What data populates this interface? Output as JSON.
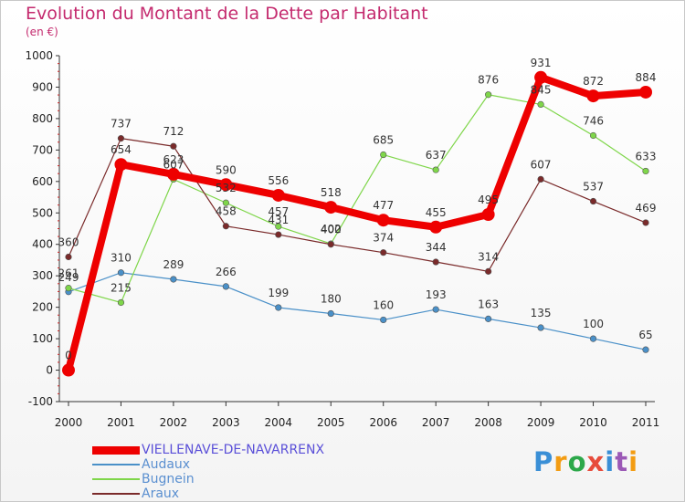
{
  "header": {
    "title": "Evolution du Montant de la Dette par Habitant",
    "subtitle": "(en €)"
  },
  "logo": {
    "text": "Proxiti",
    "colors": [
      "#3a8fd6",
      "#f39c12",
      "#2ca84a",
      "#e74c3c",
      "#3a8fd6",
      "#9b59b6",
      "#f39c12"
    ]
  },
  "chart_data": {
    "type": "line",
    "title": "Evolution du Montant de la Dette par Habitant",
    "subtitle": "(en €)",
    "xlabel": "",
    "ylabel": "",
    "x": [
      "2000",
      "2001",
      "2002",
      "2003",
      "2004",
      "2005",
      "2006",
      "2007",
      "2008",
      "2009",
      "2010",
      "2011"
    ],
    "ylim": [
      -100,
      1000
    ],
    "yticks": [
      -100,
      0,
      100,
      200,
      300,
      400,
      500,
      600,
      700,
      800,
      900,
      1000
    ],
    "grid": false,
    "legend_position": "bottom-left",
    "series": [
      {
        "name": "VIELLENAVE-DE-NAVARRENX",
        "color": "#ee0000",
        "values": [
          0,
          654,
          623,
          590,
          556,
          518,
          477,
          455,
          495,
          931,
          872,
          884
        ]
      },
      {
        "name": "Audaux",
        "color": "#4a90c8",
        "values": [
          249,
          310,
          289,
          266,
          199,
          180,
          160,
          193,
          163,
          135,
          100,
          65
        ]
      },
      {
        "name": "Bugnein",
        "color": "#7fd64a",
        "values": [
          261,
          215,
          607,
          532,
          457,
          402,
          685,
          637,
          876,
          845,
          746,
          633
        ]
      },
      {
        "name": "Araux",
        "color": "#7a2a2a",
        "values": [
          360,
          737,
          712,
          458,
          431,
          400,
          374,
          344,
          314,
          607,
          537,
          469
        ]
      }
    ]
  }
}
